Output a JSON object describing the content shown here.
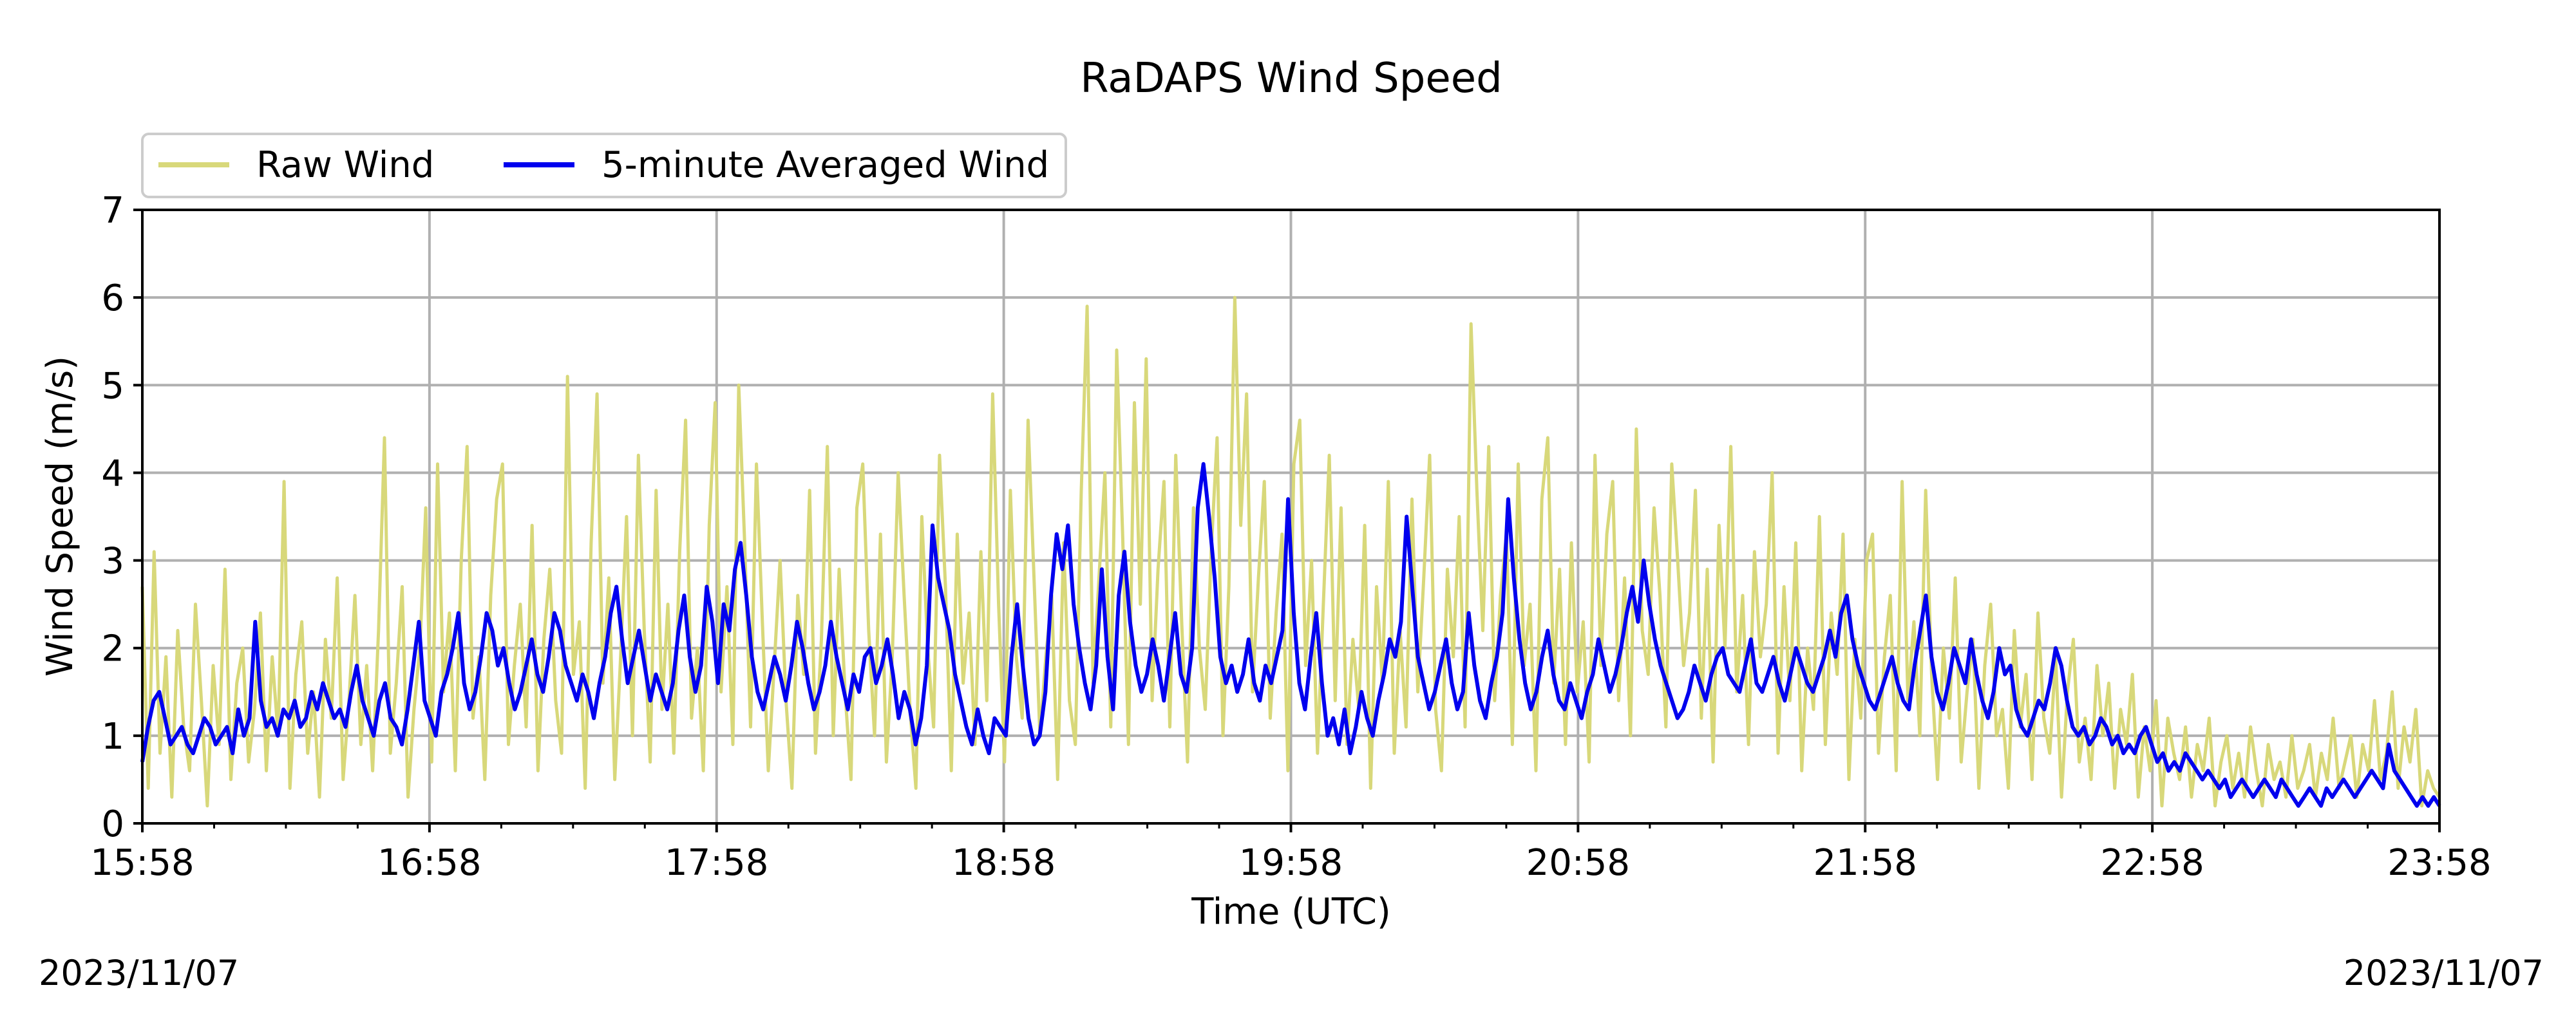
{
  "chart_data": {
    "type": "line",
    "title": "RaDAPS Wind Speed",
    "xlabel": "Time (UTC)",
    "ylabel": "Wind Speed (m/s)",
    "xlim": [
      "15:58",
      "23:58"
    ],
    "ylim": [
      0,
      7
    ],
    "x_ticks": [
      "15:58",
      "16:58",
      "17:58",
      "18:58",
      "19:58",
      "20:58",
      "21:58",
      "22:58",
      "23:58"
    ],
    "y_ticks": [
      0,
      1,
      2,
      3,
      4,
      5,
      6,
      7
    ],
    "date_left": "2023/11/07",
    "date_right": "2023/11/07",
    "grid": true,
    "legend_placement": "upper-left-outside",
    "series": [
      {
        "name": "Raw Wind",
        "color": "#d8d87a",
        "sample_interval": "1 min",
        "values": [
          2.7,
          0.4,
          3.1,
          0.8,
          1.9,
          0.3,
          2.2,
          1.1,
          0.6,
          2.5,
          1.4,
          0.2,
          1.8,
          0.9,
          2.9,
          0.5,
          1.6,
          2.0,
          0.7,
          1.3,
          2.4,
          0.6,
          1.9,
          1.0,
          3.9,
          0.4,
          1.7,
          2.3,
          0.8,
          1.5,
          0.3,
          2.1,
          1.2,
          2.8,
          0.5,
          1.4,
          2.6,
          0.9,
          1.8,
          0.6,
          2.2,
          4.4,
          0.8,
          1.6,
          2.7,
          0.3,
          1.3,
          2.0,
          3.6,
          0.7,
          4.1,
          1.5,
          2.4,
          0.6,
          3.0,
          4.3,
          1.2,
          1.9,
          0.5,
          2.6,
          3.7,
          4.1,
          0.9,
          1.8,
          2.5,
          1.1,
          3.4,
          0.6,
          2.1,
          2.9,
          1.4,
          0.8,
          5.1,
          1.7,
          2.3,
          0.4,
          3.2,
          4.9,
          1.6,
          2.8,
          0.5,
          1.9,
          3.5,
          1.0,
          4.2,
          2.2,
          0.7,
          3.8,
          1.3,
          2.5,
          0.8,
          3.1,
          4.6,
          1.2,
          2.0,
          0.6,
          3.4,
          4.8,
          1.5,
          2.7,
          0.9,
          5.0,
          3.2,
          1.1,
          4.1,
          2.3,
          0.6,
          1.8,
          3.0,
          1.4,
          0.4,
          2.6,
          1.7,
          3.8,
          0.8,
          2.1,
          4.3,
          1.0,
          2.9,
          1.5,
          0.5,
          3.6,
          4.1,
          2.2,
          1.0,
          3.3,
          0.7,
          1.9,
          4.0,
          2.6,
          1.3,
          0.4,
          3.5,
          2.0,
          1.1,
          4.2,
          2.7,
          0.6,
          3.3,
          1.6,
          2.4,
          0.9,
          3.1,
          1.4,
          4.9,
          2.5,
          0.7,
          3.8,
          1.9,
          1.2,
          4.6,
          2.8,
          1.0,
          1.9,
          2.6,
          0.5,
          3.2,
          1.4,
          0.9,
          3.8,
          5.9,
          1.6,
          2.8,
          4.0,
          1.1,
          5.4,
          3.3,
          0.9,
          4.8,
          2.5,
          5.3,
          1.4,
          2.9,
          3.9,
          1.1,
          4.2,
          2.3,
          0.7,
          3.6,
          2.0,
          1.3,
          3.1,
          4.4,
          1.0,
          2.7,
          6.0,
          3.4,
          4.9,
          1.5,
          2.8,
          3.9,
          1.2,
          2.4,
          3.3,
          0.6,
          4.1,
          4.6,
          1.8,
          3.0,
          0.8,
          2.5,
          4.2,
          1.4,
          3.6,
          0.9,
          2.1,
          1.3,
          3.4,
          0.4,
          2.7,
          1.6,
          3.9,
          0.8,
          2.2,
          1.1,
          3.7,
          1.5,
          2.8,
          4.2,
          1.3,
          0.6,
          2.9,
          1.9,
          3.5,
          1.1,
          5.7,
          3.8,
          2.2,
          4.3,
          1.4,
          2.6,
          3.3,
          0.9,
          4.1,
          1.8,
          2.5,
          0.6,
          3.7,
          4.4,
          1.6,
          2.9,
          0.9,
          3.2,
          1.5,
          2.3,
          0.7,
          4.2,
          1.8,
          3.3,
          3.9,
          1.4,
          2.8,
          1.0,
          4.5,
          2.2,
          1.7,
          3.6,
          2.6,
          1.1,
          4.1,
          3.0,
          1.8,
          2.4,
          3.8,
          1.2,
          2.9,
          0.7,
          3.4,
          2.0,
          4.3,
          1.5,
          2.6,
          0.9,
          3.1,
          1.9,
          2.5,
          4.0,
          0.8,
          2.7,
          1.4,
          3.2,
          0.6,
          2.0,
          1.3,
          3.5,
          0.9,
          2.4,
          1.7,
          3.3,
          0.5,
          2.1,
          1.2,
          3.0,
          3.3,
          0.8,
          1.9,
          2.6,
          0.6,
          3.9,
          1.4,
          2.3,
          1.0,
          3.8,
          1.7,
          0.5,
          2.0,
          1.2,
          2.8,
          0.7,
          1.5,
          2.1,
          0.4,
          1.8,
          2.5,
          1.0,
          1.3,
          0.4,
          2.2,
          1.1,
          1.7,
          0.5,
          2.4,
          1.2,
          0.8,
          1.9,
          0.3,
          1.5,
          2.1,
          0.7,
          1.2,
          0.5,
          1.8,
          1.0,
          1.6,
          0.4,
          1.3,
          0.9,
          1.7,
          0.3,
          1.1,
          0.6,
          1.4,
          0.2,
          1.2,
          0.8,
          0.5,
          1.1,
          0.3,
          0.9,
          0.6,
          1.2,
          0.2,
          0.7,
          1.0,
          0.4,
          0.8,
          0.3,
          1.1,
          0.6,
          0.2,
          0.9,
          0.5,
          0.7,
          0.3,
          1.0,
          0.4,
          0.6,
          0.9,
          0.3,
          0.8,
          0.5,
          1.2,
          0.4,
          0.7,
          1.0,
          0.3,
          0.9,
          0.6,
          1.4,
          0.5,
          0.8,
          1.5,
          0.4,
          1.1,
          0.7,
          1.3,
          0.2,
          0.6,
          0.4,
          0.3
        ]
      },
      {
        "name": "5-minute Averaged Wind",
        "color": "#0000ee",
        "sample_interval": "1 min",
        "values": [
          0.7,
          1.1,
          1.4,
          1.5,
          1.2,
          0.9,
          1.0,
          1.1,
          0.9,
          0.8,
          1.0,
          1.2,
          1.1,
          0.9,
          1.0,
          1.1,
          0.8,
          1.3,
          1.0,
          1.2,
          2.3,
          1.4,
          1.1,
          1.2,
          1.0,
          1.3,
          1.2,
          1.4,
          1.1,
          1.2,
          1.5,
          1.3,
          1.6,
          1.4,
          1.2,
          1.3,
          1.1,
          1.5,
          1.8,
          1.4,
          1.2,
          1.0,
          1.4,
          1.6,
          1.2,
          1.1,
          0.9,
          1.3,
          1.8,
          2.3,
          1.4,
          1.2,
          1.0,
          1.5,
          1.7,
          2.0,
          2.4,
          1.6,
          1.3,
          1.5,
          1.9,
          2.4,
          2.2,
          1.8,
          2.0,
          1.6,
          1.3,
          1.5,
          1.8,
          2.1,
          1.7,
          1.5,
          1.9,
          2.4,
          2.2,
          1.8,
          1.6,
          1.4,
          1.7,
          1.5,
          1.2,
          1.6,
          1.9,
          2.4,
          2.7,
          2.1,
          1.6,
          1.9,
          2.2,
          1.8,
          1.4,
          1.7,
          1.5,
          1.3,
          1.6,
          2.2,
          2.6,
          1.9,
          1.5,
          1.8,
          2.7,
          2.3,
          1.6,
          2.5,
          2.2,
          2.9,
          3.2,
          2.6,
          1.9,
          1.5,
          1.3,
          1.6,
          1.9,
          1.7,
          1.4,
          1.8,
          2.3,
          2.0,
          1.6,
          1.3,
          1.5,
          1.8,
          2.3,
          1.9,
          1.6,
          1.3,
          1.7,
          1.5,
          1.9,
          2.0,
          1.6,
          1.8,
          2.1,
          1.7,
          1.2,
          1.5,
          1.3,
          0.9,
          1.2,
          1.8,
          3.4,
          2.8,
          2.5,
          2.2,
          1.7,
          1.4,
          1.1,
          0.9,
          1.3,
          1.0,
          0.8,
          1.2,
          1.1,
          1.0,
          1.9,
          2.5,
          1.8,
          1.2,
          0.9,
          1.0,
          1.5,
          2.6,
          3.3,
          2.9,
          3.4,
          2.5,
          2.0,
          1.6,
          1.3,
          1.8,
          2.9,
          1.9,
          1.3,
          2.6,
          3.1,
          2.3,
          1.8,
          1.5,
          1.7,
          2.1,
          1.8,
          1.4,
          1.9,
          2.4,
          1.7,
          1.5,
          2.0,
          3.6,
          4.1,
          3.5,
          2.8,
          1.9,
          1.6,
          1.8,
          1.5,
          1.7,
          2.1,
          1.6,
          1.4,
          1.8,
          1.6,
          1.9,
          2.2,
          3.7,
          2.4,
          1.6,
          1.3,
          1.9,
          2.4,
          1.6,
          1.0,
          1.2,
          0.9,
          1.3,
          0.8,
          1.1,
          1.5,
          1.2,
          1.0,
          1.4,
          1.7,
          2.1,
          1.9,
          2.3,
          3.5,
          2.7,
          1.9,
          1.6,
          1.3,
          1.5,
          1.8,
          2.1,
          1.6,
          1.3,
          1.5,
          2.4,
          1.8,
          1.4,
          1.2,
          1.6,
          1.9,
          2.4,
          3.7,
          2.8,
          2.1,
          1.6,
          1.3,
          1.5,
          1.9,
          2.2,
          1.7,
          1.4,
          1.3,
          1.6,
          1.4,
          1.2,
          1.5,
          1.7,
          2.1,
          1.8,
          1.5,
          1.7,
          2.0,
          2.4,
          2.7,
          2.3,
          3.0,
          2.5,
          2.1,
          1.8,
          1.6,
          1.4,
          1.2,
          1.3,
          1.5,
          1.8,
          1.6,
          1.4,
          1.7,
          1.9,
          2.0,
          1.7,
          1.6,
          1.5,
          1.8,
          2.1,
          1.6,
          1.5,
          1.7,
          1.9,
          1.6,
          1.4,
          1.7,
          2.0,
          1.8,
          1.6,
          1.5,
          1.7,
          1.9,
          2.2,
          1.9,
          2.4,
          2.6,
          2.1,
          1.8,
          1.6,
          1.4,
          1.3,
          1.5,
          1.7,
          1.9,
          1.6,
          1.4,
          1.3,
          1.8,
          2.2,
          2.6,
          1.9,
          1.5,
          1.3,
          1.6,
          2.0,
          1.8,
          1.6,
          2.1,
          1.7,
          1.4,
          1.2,
          1.5,
          2.0,
          1.7,
          1.8,
          1.3,
          1.1,
          1.0,
          1.2,
          1.4,
          1.3,
          1.6,
          2.0,
          1.8,
          1.4,
          1.1,
          1.0,
          1.1,
          0.9,
          1.0,
          1.2,
          1.1,
          0.9,
          1.0,
          0.8,
          0.9,
          0.8,
          1.0,
          1.1,
          0.9,
          0.7,
          0.8,
          0.6,
          0.7,
          0.6,
          0.8,
          0.7,
          0.6,
          0.5,
          0.6,
          0.5,
          0.4,
          0.5,
          0.3,
          0.4,
          0.5,
          0.4,
          0.3,
          0.4,
          0.5,
          0.4,
          0.3,
          0.5,
          0.4,
          0.3,
          0.2,
          0.3,
          0.4,
          0.3,
          0.2,
          0.4,
          0.3,
          0.4,
          0.5,
          0.4,
          0.3,
          0.4,
          0.5,
          0.6,
          0.5,
          0.4,
          0.9,
          0.6,
          0.5,
          0.4,
          0.3,
          0.2,
          0.3,
          0.2,
          0.3,
          0.2
        ]
      }
    ]
  }
}
